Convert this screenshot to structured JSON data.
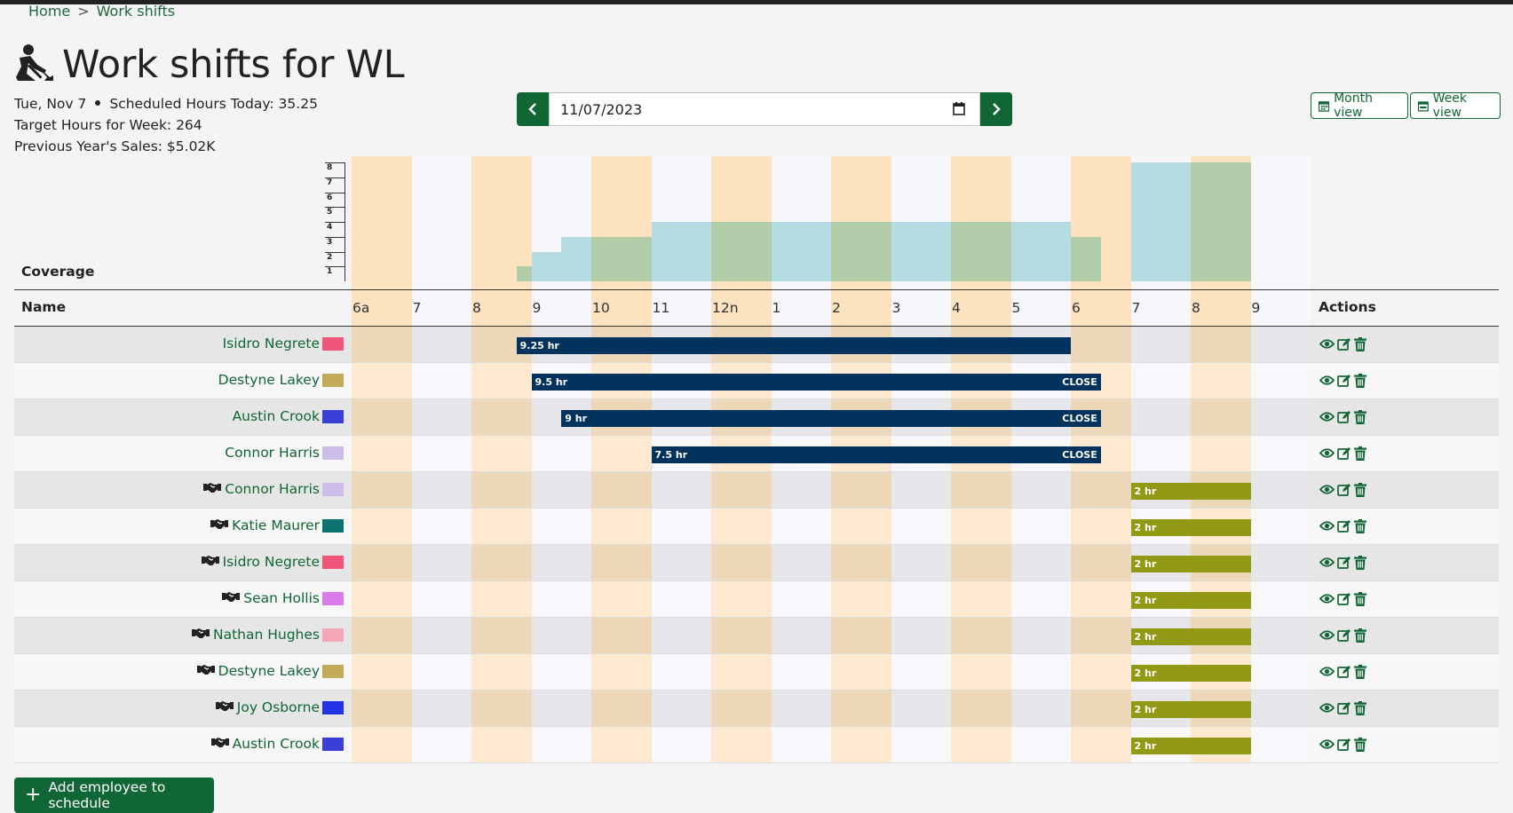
{
  "breadcrumb": {
    "home": "Home",
    "separator": ">",
    "current": "Work shifts"
  },
  "page": {
    "title": "Work shifts for WL",
    "title_icon": "worker-shovel-icon"
  },
  "info": {
    "date": "Tue, Nov 7",
    "scheduled_hours_today": "Scheduled Hours Today: 35.25",
    "target_hours_week": "Target Hours for Week: 264",
    "previous_year_sales": "Previous Year's Sales: $5.02K"
  },
  "date_picker": {
    "value": "11/07/2023",
    "prev_icon": "chevron-left-icon",
    "next_icon": "chevron-right-icon",
    "calendar_icon": "calendar-icon"
  },
  "views": {
    "month_label": "Month view",
    "week_label": "Week view"
  },
  "coverage": {
    "label": "Coverage",
    "y_ticks": [
      "8",
      "7",
      "6",
      "5",
      "4",
      "3",
      "2",
      "1"
    ],
    "segments": [
      {
        "start_hour": 8.75,
        "end_hour": 9,
        "staff": 1
      },
      {
        "start_hour": 9,
        "end_hour": 9.5,
        "staff": 2
      },
      {
        "start_hour": 9.5,
        "end_hour": 11,
        "staff": 3
      },
      {
        "start_hour": 11,
        "end_hour": 18,
        "staff": 4
      },
      {
        "start_hour": 18,
        "end_hour": 18.5,
        "staff": 3
      },
      {
        "start_hour": 19,
        "end_hour": 21,
        "staff": 8
      }
    ]
  },
  "table": {
    "name_header": "Name",
    "actions_header": "Actions",
    "hours": [
      "6a",
      "7",
      "8",
      "9",
      "10",
      "11",
      "12n",
      "1",
      "2",
      "3",
      "4",
      "5",
      "6",
      "7",
      "8",
      "9"
    ],
    "rows": [
      {
        "name": "Isidro Negrete",
        "color": "#f0557a",
        "handshake": false,
        "start": 8.75,
        "end": 18,
        "label": "9.25 hr",
        "close": "",
        "type": "navy"
      },
      {
        "name": "Destyne Lakey",
        "color": "#c4a95b",
        "handshake": false,
        "start": 9,
        "end": 18.5,
        "label": "9.5 hr",
        "close": "CLOSE",
        "type": "navy"
      },
      {
        "name": "Austin Crook",
        "color": "#3c3ed8",
        "handshake": false,
        "start": 9.5,
        "end": 18.5,
        "label": "9 hr",
        "close": "CLOSE",
        "type": "navy"
      },
      {
        "name": "Connor Harris",
        "color": "#cbbde8",
        "handshake": false,
        "start": 11,
        "end": 18.5,
        "label": "7.5 hr",
        "close": "CLOSE",
        "type": "navy"
      },
      {
        "name": "Connor Harris",
        "color": "#cbbde8",
        "handshake": true,
        "start": 19,
        "end": 21,
        "label": "2 hr",
        "close": "",
        "type": "olive"
      },
      {
        "name": "Katie Maurer",
        "color": "#0b7370",
        "handshake": true,
        "start": 19,
        "end": 21,
        "label": "2 hr",
        "close": "",
        "type": "olive"
      },
      {
        "name": "Isidro Negrete",
        "color": "#f0557a",
        "handshake": true,
        "start": 19,
        "end": 21,
        "label": "2 hr",
        "close": "",
        "type": "olive"
      },
      {
        "name": "Sean Hollis",
        "color": "#d97be8",
        "handshake": true,
        "start": 19,
        "end": 21,
        "label": "2 hr",
        "close": "",
        "type": "olive"
      },
      {
        "name": "Nathan Hughes",
        "color": "#f5a9b8",
        "handshake": true,
        "start": 19,
        "end": 21,
        "label": "2 hr",
        "close": "",
        "type": "olive"
      },
      {
        "name": "Destyne Lakey",
        "color": "#c4a95b",
        "handshake": true,
        "start": 19,
        "end": 21,
        "label": "2 hr",
        "close": "",
        "type": "olive"
      },
      {
        "name": "Joy Osborne",
        "color": "#2233e6",
        "handshake": true,
        "start": 19,
        "end": 21,
        "label": "2 hr",
        "close": "",
        "type": "olive"
      },
      {
        "name": "Austin Crook",
        "color": "#3c3ed8",
        "handshake": true,
        "start": 19,
        "end": 21,
        "label": "2 hr",
        "close": "",
        "type": "olive"
      }
    ]
  },
  "add_button": {
    "label": "Add employee to schedule"
  }
}
